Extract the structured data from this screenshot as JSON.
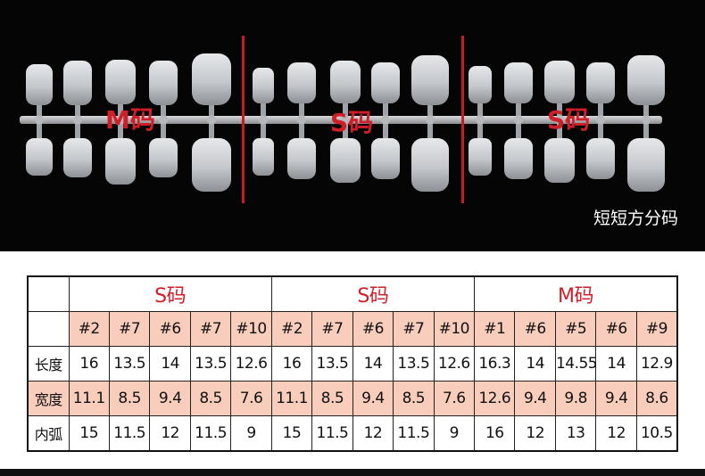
{
  "photo": {
    "labels": [
      "M码",
      "S码",
      "S码"
    ],
    "caption": "短短方分码",
    "colors": {
      "background": "#050505",
      "accent": "#d11f2a",
      "nail": "#c9ccd0"
    }
  },
  "table": {
    "groups": [
      "S码",
      "S码",
      "M码"
    ],
    "sizes": [
      "#2",
      "#7",
      "#6",
      "#7",
      "#10",
      "#2",
      "#7",
      "#6",
      "#7",
      "#10",
      "#1",
      "#6",
      "#5",
      "#6",
      "#9"
    ],
    "rows": [
      {
        "label": "长度",
        "values": [
          "16",
          "13.5",
          "14",
          "13.5",
          "12.6",
          "16",
          "13.5",
          "14",
          "13.5",
          "12.6",
          "16.3",
          "14",
          "14.55",
          "14",
          "12.9"
        ]
      },
      {
        "label": "宽度",
        "values": [
          "11.1",
          "8.5",
          "9.4",
          "8.5",
          "7.6",
          "11.1",
          "8.5",
          "9.4",
          "8.5",
          "7.6",
          "12.6",
          "9.4",
          "9.8",
          "9.4",
          "8.6"
        ]
      },
      {
        "label": "内弧",
        "values": [
          "15",
          "11.5",
          "12",
          "11.5",
          "9",
          "15",
          "11.5",
          "12",
          "11.5",
          "9",
          "16",
          "12",
          "13",
          "12",
          "10.5"
        ]
      }
    ],
    "colors": {
      "header_fill": "#f9cdbb",
      "group_text": "#d11f2a"
    }
  }
}
